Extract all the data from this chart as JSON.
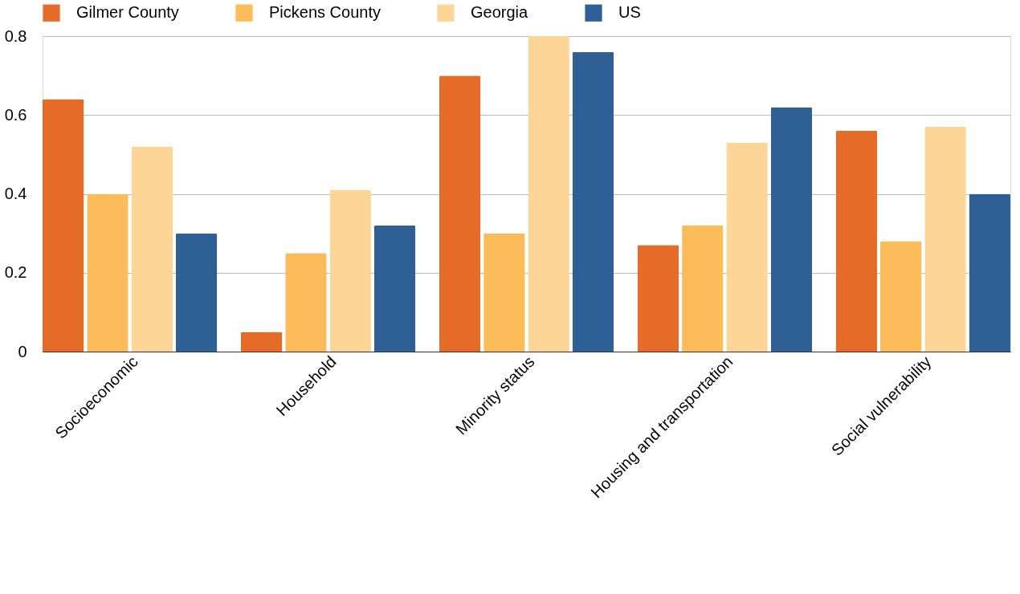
{
  "chart_data": {
    "type": "bar",
    "categories": [
      "Socioeconomic",
      "Household",
      "Minority status",
      "Housing and transportation",
      "Social vulnerability"
    ],
    "series": [
      {
        "name": "Gilmer County",
        "color": "#e46c28",
        "values": [
          0.64,
          0.05,
          0.7,
          0.27,
          0.56
        ]
      },
      {
        "name": "Pickens County",
        "color": "#fdbb5a",
        "values": [
          0.4,
          0.25,
          0.3,
          0.32,
          0.28
        ]
      },
      {
        "name": "Georgia",
        "color": "#fdd596",
        "values": [
          0.52,
          0.41,
          0.8,
          0.53,
          0.57
        ]
      },
      {
        "name": "US",
        "color": "#2e6096",
        "values": [
          0.3,
          0.32,
          0.76,
          0.62,
          0.4
        ]
      }
    ],
    "ylim": [
      0,
      0.8
    ],
    "yticks": [
      0,
      0.2,
      0.4,
      0.6,
      0.8
    ],
    "grid": "y",
    "legend": "top"
  }
}
